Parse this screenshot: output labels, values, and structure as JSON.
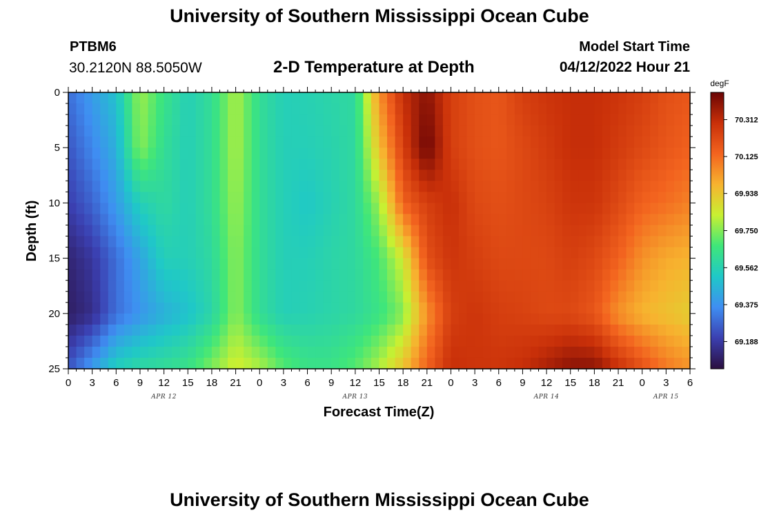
{
  "header": {
    "title": "University of Southern Mississippi Ocean Cube",
    "station_id": "PTBM6",
    "coordinates": "30.2120N  88.5050W",
    "chart_title": "2-D Temperature at Depth",
    "start_label": "Model Start Time",
    "start_value": "04/12/2022 Hour 21"
  },
  "footer": {
    "title": "University of Southern Mississippi Ocean Cube"
  },
  "chart_data": {
    "type": "heatmap",
    "title": "2-D Temperature at Depth",
    "xlabel": "Forecast Time(Z)",
    "ylabel": "Depth (ft)",
    "x_hours_from_apr12_00z": [
      0,
      78
    ],
    "y_depth_ft": [
      0,
      25
    ],
    "x_ticks": [
      "0",
      "3",
      "6",
      "9",
      "12",
      "15",
      "18",
      "21",
      "0",
      "3",
      "6",
      "9",
      "12",
      "15",
      "18",
      "21",
      "0",
      "3",
      "6",
      "9",
      "12",
      "15",
      "18",
      "21",
      "0",
      "3",
      "6"
    ],
    "date_labels": [
      {
        "label": "APR 12",
        "hour": 12
      },
      {
        "label": "APR 13",
        "hour": 36
      },
      {
        "label": "APR 14",
        "hour": 60
      },
      {
        "label": "APR 15",
        "hour": 75
      }
    ],
    "y_ticks": [
      "0",
      "5",
      "10",
      "15",
      "20",
      "25"
    ],
    "colorbar": {
      "unit": "degF",
      "range": [
        69.05,
        70.45
      ],
      "labels": [
        "70.312",
        "70.125",
        "69.938",
        "69.750",
        "69.562",
        "69.375",
        "69.188"
      ],
      "colors": [
        "#2b0f3f",
        "#3b3fb0",
        "#3f8ef2",
        "#1fc8c8",
        "#3fe67a",
        "#c8f032",
        "#f7b32f",
        "#f3641f",
        "#c93009",
        "#6b0505"
      ]
    },
    "grid": {
      "description": "Temperature (degF) sampled every 3 hours (columns, hour 0..78) at depths 0,5,10,15,20,25 ft (rows)",
      "depths_ft": [
        0,
        5,
        10,
        15,
        20,
        25
      ],
      "hours": [
        0,
        3,
        6,
        9,
        12,
        15,
        18,
        21,
        24,
        27,
        30,
        33,
        36,
        39,
        42,
        45,
        48,
        51,
        54,
        57,
        60,
        63,
        66,
        69,
        72,
        75,
        78
      ],
      "values": [
        [
          69.3,
          69.4,
          69.5,
          69.78,
          69.65,
          69.55,
          69.62,
          69.8,
          69.62,
          69.55,
          69.56,
          69.58,
          69.6,
          70.05,
          70.3,
          70.4,
          70.25,
          70.2,
          70.18,
          70.25,
          70.28,
          70.3,
          70.3,
          70.28,
          70.25,
          70.2,
          70.18
        ],
        [
          69.25,
          69.35,
          69.45,
          69.76,
          69.62,
          69.55,
          69.62,
          69.8,
          69.62,
          69.55,
          69.55,
          69.57,
          69.6,
          69.95,
          70.25,
          70.45,
          70.25,
          70.2,
          70.18,
          70.22,
          70.26,
          70.3,
          70.3,
          70.26,
          70.22,
          70.18,
          70.15
        ],
        [
          69.2,
          69.28,
          69.4,
          69.55,
          69.6,
          69.55,
          69.62,
          69.78,
          69.62,
          69.55,
          69.52,
          69.56,
          69.6,
          69.78,
          70.15,
          70.25,
          70.3,
          70.22,
          70.2,
          70.22,
          70.24,
          70.28,
          70.28,
          70.22,
          70.15,
          70.12,
          70.08
        ],
        [
          69.12,
          69.18,
          69.3,
          69.42,
          69.55,
          69.55,
          69.6,
          69.76,
          69.62,
          69.55,
          69.55,
          69.58,
          69.6,
          69.68,
          69.85,
          70.2,
          70.28,
          70.25,
          70.22,
          70.22,
          70.22,
          70.25,
          70.22,
          70.15,
          70.05,
          70.0,
          69.98
        ],
        [
          69.1,
          69.15,
          69.3,
          69.38,
          69.45,
          69.5,
          69.58,
          69.76,
          69.62,
          69.55,
          69.56,
          69.58,
          69.6,
          69.65,
          69.75,
          70.05,
          70.25,
          70.28,
          70.25,
          70.24,
          70.22,
          70.22,
          70.18,
          70.05,
          69.98,
          69.95,
          69.92
        ],
        [
          69.25,
          69.4,
          69.55,
          69.6,
          69.62,
          69.65,
          69.75,
          69.85,
          69.8,
          69.7,
          69.65,
          69.65,
          69.7,
          69.8,
          69.95,
          70.15,
          70.3,
          70.28,
          70.28,
          70.3,
          70.35,
          70.4,
          70.4,
          70.3,
          70.2,
          70.1,
          70.05
        ]
      ]
    }
  }
}
